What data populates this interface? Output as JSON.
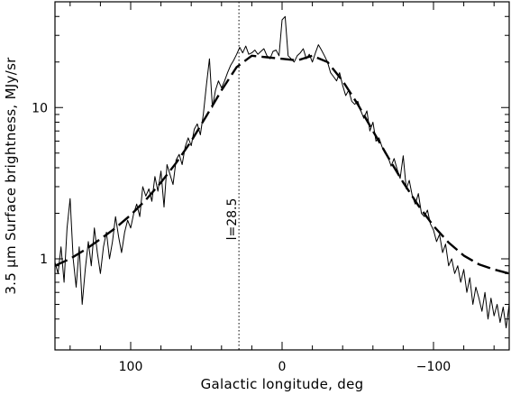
{
  "chart_data": {
    "type": "line",
    "title": "",
    "xlabel": "Galactic longitude, deg",
    "ylabel": "3.5 μm Surface brightness, MJy/sr",
    "xlim": [
      150,
      -150
    ],
    "ylim": [
      0.25,
      50
    ],
    "y_scale": "log",
    "grid": false,
    "legend": "none",
    "x_ticks": [
      {
        "value": 100,
        "label": "100"
      },
      {
        "value": 0,
        "label": "0"
      },
      {
        "value": -100,
        "label": "−100"
      }
    ],
    "y_ticks": [
      {
        "value": 1,
        "label": "1"
      },
      {
        "value": 10,
        "label": "10"
      }
    ],
    "annotations": [
      {
        "text": "l=28.5",
        "x": 28.5,
        "style": "dotted-vertical-line"
      }
    ],
    "series": [
      {
        "style": "solid",
        "x": [
          150,
          148,
          146,
          144,
          142,
          140,
          138,
          136,
          134,
          132,
          130,
          128,
          126,
          124,
          122,
          120,
          118,
          116,
          114,
          112,
          110,
          108,
          106,
          104,
          102,
          100,
          98,
          96,
          94,
          92,
          90,
          88,
          86,
          84,
          82,
          80,
          78,
          76,
          74,
          72,
          70,
          68,
          66,
          64,
          62,
          60,
          58,
          56,
          54,
          52,
          50,
          48,
          46,
          44,
          42,
          40,
          38,
          36,
          34,
          32,
          30,
          28,
          26,
          24,
          22,
          20,
          18,
          16,
          14,
          12,
          10,
          8,
          6,
          4,
          2,
          0,
          -2,
          -4,
          -6,
          -8,
          -10,
          -12,
          -14,
          -16,
          -18,
          -20,
          -22,
          -24,
          -26,
          -28,
          -30,
          -32,
          -34,
          -36,
          -38,
          -40,
          -42,
          -44,
          -46,
          -48,
          -50,
          -52,
          -54,
          -56,
          -58,
          -60,
          -62,
          -64,
          -66,
          -68,
          -70,
          -72,
          -74,
          -76,
          -78,
          -80,
          -82,
          -84,
          -86,
          -88,
          -90,
          -92,
          -94,
          -96,
          -98,
          -100,
          -102,
          -104,
          -106,
          -108,
          -110,
          -112,
          -114,
          -116,
          -118,
          -120,
          -122,
          -124,
          -126,
          -128,
          -130,
          -132,
          -134,
          -136,
          -138,
          -140,
          -142,
          -144,
          -146,
          -148,
          -150
        ],
        "values": [
          0.95,
          0.8,
          1.2,
          0.7,
          1.6,
          2.5,
          1.0,
          0.65,
          1.2,
          0.5,
          0.85,
          1.3,
          0.9,
          1.6,
          1.1,
          0.8,
          1.2,
          1.5,
          1.0,
          1.3,
          1.9,
          1.4,
          1.1,
          1.5,
          1.8,
          1.6,
          2.0,
          2.3,
          1.9,
          3.0,
          2.6,
          2.9,
          2.4,
          3.5,
          2.8,
          3.8,
          2.2,
          4.2,
          3.6,
          3.1,
          4.5,
          4.9,
          4.2,
          5.5,
          6.3,
          5.6,
          7.2,
          7.8,
          6.6,
          9.0,
          14.0,
          21.0,
          10.0,
          13.0,
          15.0,
          13.5,
          15.0,
          17.0,
          19.0,
          20.5,
          22.5,
          25.0,
          23.0,
          25.5,
          22.5,
          23.0,
          24.0,
          22.5,
          23.5,
          24.5,
          22.0,
          21.0,
          23.5,
          24.0,
          22.0,
          38.0,
          40.0,
          22.0,
          21.0,
          20.0,
          22.0,
          23.0,
          24.5,
          21.0,
          22.5,
          20.0,
          23.0,
          26.0,
          24.0,
          22.0,
          20.0,
          17.0,
          16.0,
          15.0,
          17.0,
          14.0,
          12.0,
          13.0,
          11.0,
          10.5,
          11.0,
          9.5,
          8.5,
          9.5,
          7.0,
          8.0,
          6.0,
          6.3,
          5.5,
          5.0,
          4.7,
          4.1,
          4.6,
          3.9,
          3.4,
          4.8,
          2.9,
          3.3,
          2.6,
          2.3,
          2.7,
          2.0,
          1.9,
          2.1,
          1.7,
          1.55,
          1.3,
          1.45,
          1.1,
          1.25,
          0.9,
          1.0,
          0.8,
          0.9,
          0.7,
          0.85,
          0.6,
          0.75,
          0.5,
          0.65,
          0.55,
          0.45,
          0.6,
          0.4,
          0.55,
          0.42,
          0.5,
          0.38,
          0.48,
          0.35,
          0.5
        ]
      },
      {
        "style": "dashed",
        "x": [
          150,
          140,
          130,
          120,
          110,
          100,
          90,
          80,
          70,
          60,
          50,
          40,
          30,
          20,
          10,
          0,
          -10,
          -20,
          -30,
          -40,
          -50,
          -60,
          -70,
          -80,
          -90,
          -100,
          -110,
          -120,
          -130,
          -140,
          -150
        ],
        "values": [
          0.9,
          1.0,
          1.15,
          1.35,
          1.6,
          1.95,
          2.45,
          3.2,
          4.3,
          6.0,
          8.8,
          13.0,
          18.5,
          22.0,
          21.5,
          21.0,
          20.5,
          22.0,
          20.0,
          15.0,
          10.5,
          7.0,
          4.7,
          3.2,
          2.25,
          1.65,
          1.28,
          1.05,
          0.92,
          0.85,
          0.8
        ]
      }
    ]
  }
}
